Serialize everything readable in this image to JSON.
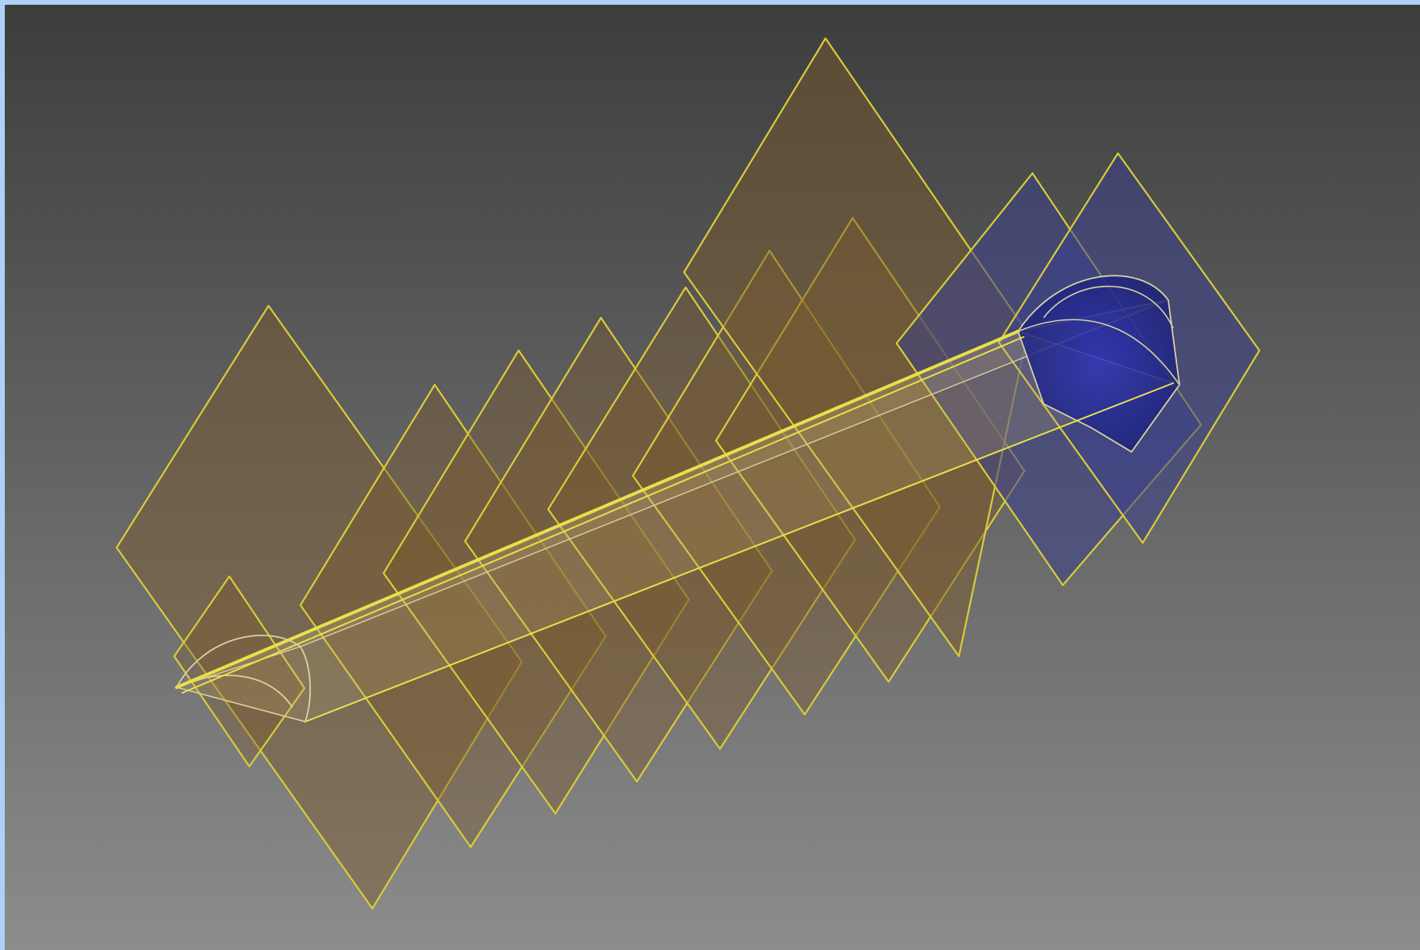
{
  "viewport": {
    "background_top": "#3d3d3d",
    "background_bottom": "#8c8c8c",
    "frame_color": "#aed1f5"
  },
  "model": {
    "edge_color": "#d8cc3a",
    "plane_fill": "#7a5a2c",
    "end_plane_fill": "#3b3f8a",
    "end_cap_fill": "#2a2f9e",
    "rail_color": "#e8e04a",
    "profile_color": "#d9d2a0",
    "section_plane_count": 11,
    "end_plane_count": 2
  }
}
